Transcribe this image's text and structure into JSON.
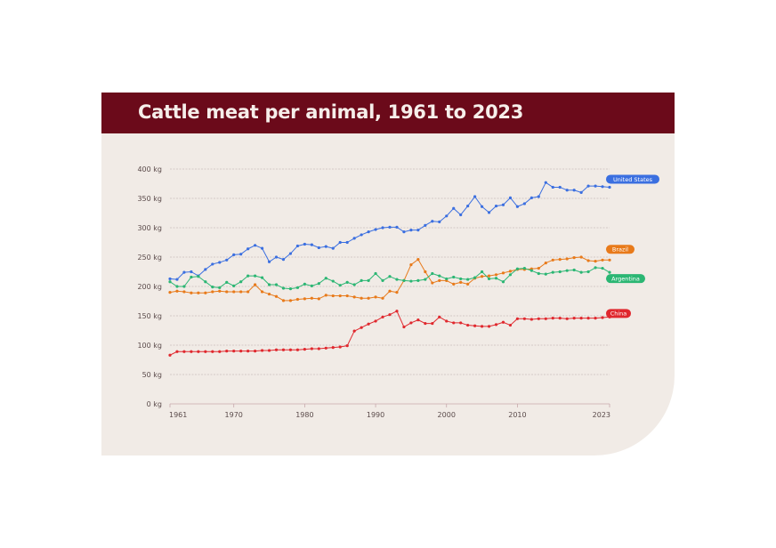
{
  "header": {
    "title": "Cattle meat per animal, 1961 to 2023"
  },
  "chart_data": {
    "type": "line",
    "title": "Cattle meat per animal, 1961 to 2023",
    "xlabel": "",
    "ylabel": "",
    "xlim": [
      1961,
      2023
    ],
    "ylim": [
      0,
      400
    ],
    "grid": true,
    "x_ticks": [
      "1961",
      "1970",
      "1980",
      "1990",
      "2000",
      "2010",
      "2023"
    ],
    "y_ticks": [
      "0 kg",
      "50 kg",
      "100 kg",
      "150 kg",
      "200 kg",
      "250 kg",
      "300 kg",
      "350 kg",
      "400 kg"
    ],
    "x": [
      1961,
      1962,
      1963,
      1964,
      1965,
      1966,
      1967,
      1968,
      1969,
      1970,
      1971,
      1972,
      1973,
      1974,
      1975,
      1976,
      1977,
      1978,
      1979,
      1980,
      1981,
      1982,
      1983,
      1984,
      1985,
      1986,
      1987,
      1988,
      1989,
      1990,
      1991,
      1992,
      1993,
      1994,
      1995,
      1996,
      1997,
      1998,
      1999,
      2000,
      2001,
      2002,
      2003,
      2004,
      2005,
      2006,
      2007,
      2008,
      2009,
      2010,
      2011,
      2012,
      2013,
      2014,
      2015,
      2016,
      2017,
      2018,
      2019,
      2020,
      2021,
      2022,
      2023
    ],
    "series": [
      {
        "name": "United States",
        "color": "#3b6fe0",
        "values": [
          213,
          212,
          224,
          225,
          218,
          229,
          238,
          241,
          245,
          254,
          255,
          264,
          270,
          265,
          242,
          250,
          246,
          256,
          269,
          272,
          271,
          266,
          268,
          265,
          275,
          275,
          282,
          288,
          293,
          297,
          300,
          301,
          301,
          293,
          296,
          296,
          304,
          311,
          310,
          320,
          333,
          322,
          337,
          353,
          336,
          326,
          337,
          339,
          351,
          336,
          341,
          351,
          353,
          377,
          369,
          369,
          364,
          364,
          360,
          371,
          371,
          370,
          369
        ]
      },
      {
        "name": "Brazil",
        "color": "#e87a1a",
        "values": [
          190,
          192,
          191,
          189,
          189,
          189,
          191,
          192,
          191,
          191,
          191,
          191,
          203,
          191,
          187,
          183,
          176,
          176,
          178,
          179,
          180,
          179,
          185,
          184,
          184,
          184,
          182,
          180,
          180,
          182,
          180,
          192,
          190,
          210,
          237,
          246,
          225,
          206,
          210,
          210,
          204,
          207,
          204,
          214,
          217,
          218,
          220,
          223,
          226,
          229,
          229,
          230,
          231,
          240,
          245,
          246,
          247,
          249,
          250,
          244,
          243,
          245,
          245
        ]
      },
      {
        "name": "Argentina",
        "color": "#2bb673",
        "values": [
          208,
          200,
          200,
          216,
          217,
          208,
          199,
          198,
          207,
          201,
          208,
          218,
          218,
          215,
          203,
          203,
          197,
          196,
          198,
          204,
          201,
          205,
          214,
          209,
          202,
          207,
          203,
          210,
          210,
          222,
          210,
          217,
          212,
          210,
          209,
          210,
          212,
          222,
          218,
          213,
          216,
          213,
          212,
          215,
          225,
          213,
          214,
          208,
          220,
          230,
          231,
          227,
          222,
          221,
          224,
          225,
          227,
          228,
          224,
          225,
          232,
          231,
          224
        ]
      },
      {
        "name": "China",
        "color": "#e0282e",
        "values": [
          83,
          89,
          89,
          89,
          89,
          89,
          89,
          89,
          90,
          90,
          90,
          90,
          90,
          91,
          91,
          92,
          92,
          92,
          92,
          93,
          94,
          94,
          95,
          96,
          97,
          99,
          124,
          130,
          136,
          141,
          148,
          152,
          158,
          131,
          138,
          143,
          137,
          137,
          148,
          141,
          138,
          138,
          134,
          133,
          132,
          132,
          135,
          139,
          134,
          145,
          145,
          144,
          145,
          145,
          146,
          146,
          145,
          146,
          146,
          146,
          146,
          147,
          148
        ]
      }
    ]
  }
}
